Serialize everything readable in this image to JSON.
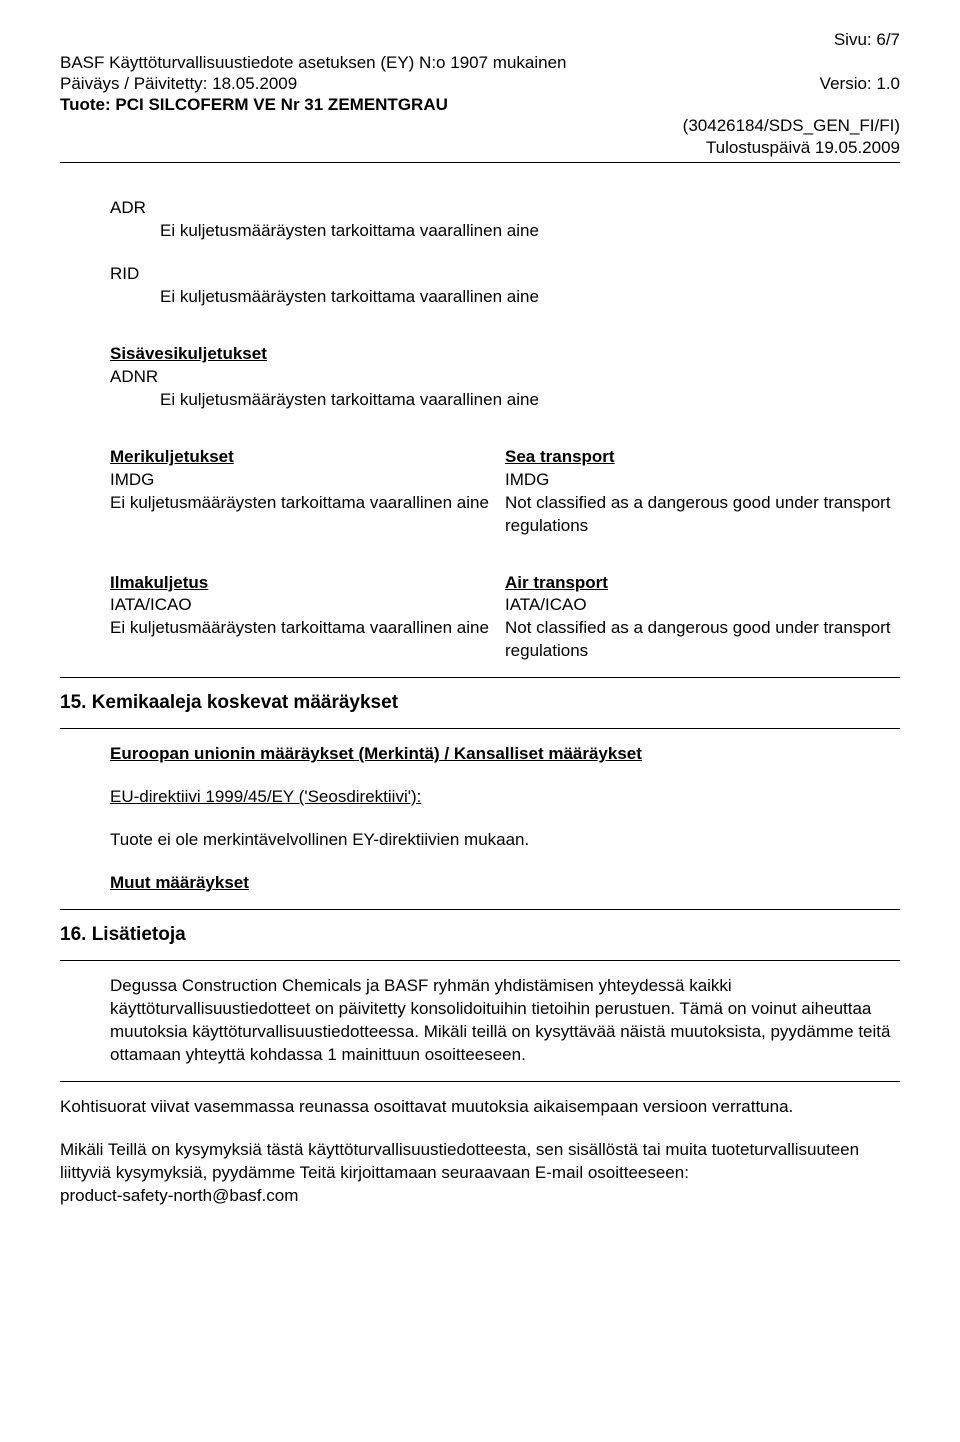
{
  "header": {
    "page_num": "Sivu: 6/7",
    "line1": "BASF Käyttöturvallisuustiedote asetuksen (EY) N:o 1907 mukainen",
    "date_label": "Päiväys / Päivitetty: 18.05.2009",
    "version": "Versio: 1.0",
    "product": "Tuote: PCI SILCOFERM VE Nr 31 ZEMENTGRAU",
    "doc_id": "(30426184/SDS_GEN_FI/FI)",
    "print_date": "Tulostuspäivä 19.05.2009"
  },
  "transport": {
    "adr": "ADR",
    "adr_text": "Ei kuljetusmääräysten tarkoittama vaarallinen aine",
    "rid": "RID",
    "rid_text": "Ei kuljetusmääräysten tarkoittama vaarallinen aine",
    "inland_title": "Sisävesikuljetukset",
    "adnr": "ADNR",
    "adnr_text": "Ei kuljetusmääräysten tarkoittama vaarallinen aine",
    "sea_left_title": "Merikuljetukset",
    "sea_left_code": "IMDG",
    "sea_left_text": "Ei kuljetusmääräysten tarkoittama vaarallinen aine",
    "sea_right_title": "Sea transport",
    "sea_right_code": "IMDG",
    "sea_right_text": "Not classified as a dangerous good under transport regulations",
    "air_left_title": "Ilmakuljetus",
    "air_left_code": "IATA/ICAO",
    "air_left_text": "Ei kuljetusmääräysten tarkoittama vaarallinen aine",
    "air_right_title": "Air transport",
    "air_right_code": "IATA/ICAO",
    "air_right_text": "Not classified as a dangerous good under transport regulations"
  },
  "sec15": {
    "title": "15. Kemikaaleja koskevat määräykset",
    "eu_title": "Euroopan unionin määräykset (Merkintä) / Kansalliset määräykset",
    "directive": "EU-direktiivi 1999/45/EY ('Seosdirektiivi'):",
    "not_labelled": "Tuote ei ole merkintävelvollinen EY-direktiivien mukaan.",
    "other": "Muut määräykset"
  },
  "sec16": {
    "title": "16. Lisätietoja",
    "p1": "Degussa Construction Chemicals ja BASF ryhmän yhdistämisen yhteydessä kaikki käyttöturvallisuustiedotteet on päivitetty konsolidoituihin tietoihin perustuen. Tämä on voinut aiheuttaa muutoksia käyttöturvallisuustiedotteessa. Mikäli teillä on kysyttävää näistä muutoksista, pyydämme teitä ottamaan yhteyttä kohdassa 1 mainittuun osoitteeseen.",
    "p2": "Kohtisuorat viivat vasemmassa reunassa osoittavat muutoksia aikaisempaan versioon verrattuna.",
    "p3": "Mikäli Teillä on kysymyksiä tästä käyttöturvallisuustiedotteesta, sen sisällöstä tai muita tuoteturvallisuuteen liittyviä kysymyksiä, pyydämme Teitä kirjoittamaan seuraavaan E-mail osoitteeseen:",
    "email": "product-safety-north@basf.com"
  }
}
